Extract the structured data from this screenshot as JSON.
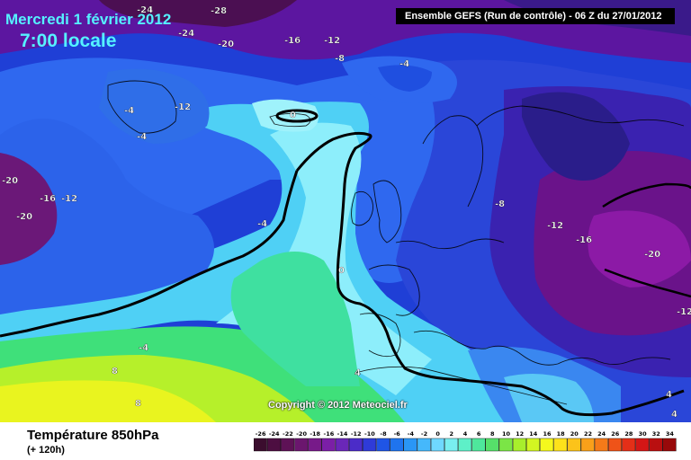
{
  "header": {
    "date": "Mercredi 1 février 2012",
    "local_time": "7:00 locale",
    "run_info": "Ensemble GEFS (Run de contrôle)  -  06 Z du 27/01/2012"
  },
  "map": {
    "copyright": "Copyright © 2012 Meteociel.fr",
    "contour_labels": [
      "-24",
      "-28",
      "-24",
      "-20",
      "-16",
      "-12",
      "-8",
      "-4",
      "-12",
      "-4",
      "-4",
      "0",
      "-20",
      "-16",
      "-12",
      "-20",
      "-4",
      "0",
      "-8",
      "-12",
      "-16",
      "-20",
      "-12",
      "-4",
      "8",
      "4",
      "8",
      "4",
      "4"
    ]
  },
  "footer": {
    "variable": "Température 850hPa",
    "lead_time": "(+ 120h)"
  },
  "legend": {
    "ticks": [
      "-26",
      "-24",
      "-22",
      "-20",
      "-18",
      "-16",
      "-14",
      "-12",
      "-10",
      "-8",
      "-6",
      "-4",
      "-2",
      "0",
      "2",
      "4",
      "6",
      "8",
      "10",
      "12",
      "14",
      "16",
      "18",
      "20",
      "22",
      "24",
      "26",
      "28",
      "30",
      "32",
      "34"
    ],
    "colors": [
      "#3b0d2e",
      "#4d0e41",
      "#5e1256",
      "#6b166e",
      "#771a89",
      "#7b1fa6",
      "#6a27b8",
      "#4b2cc8",
      "#2f3bd8",
      "#1f55e6",
      "#1f74ee",
      "#2a96f5",
      "#45b8fb",
      "#6fd8ff",
      "#79eef0",
      "#5ef0c8",
      "#4ee79c",
      "#56e06a",
      "#7be546",
      "#a8ef2c",
      "#d3f622",
      "#f4f81d",
      "#fde21b",
      "#fcc31a",
      "#f9a01a",
      "#f57a19",
      "#ef5318",
      "#e42f18",
      "#d41616",
      "#b90f10",
      "#98090a"
    ]
  }
}
